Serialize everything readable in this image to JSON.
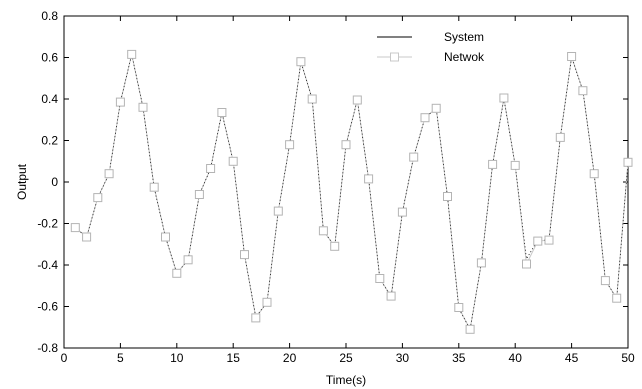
{
  "chart_data": {
    "type": "line",
    "xlabel": "Time(s)",
    "ylabel": "Output",
    "xlim": [
      0,
      50
    ],
    "ylim": [
      -0.8,
      0.8
    ],
    "xticks": [
      0,
      5,
      10,
      15,
      20,
      25,
      30,
      35,
      40,
      45,
      50
    ],
    "yticks": [
      -0.8,
      -0.6,
      -0.4,
      -0.2,
      0,
      0.2,
      0.4,
      0.6,
      0.8
    ],
    "ytick_labels": [
      "-0.8",
      "-0.6",
      "-0.4",
      "-0.2",
      "0",
      "0.2",
      "0.4",
      "0.6",
      "0.8"
    ],
    "grid": false,
    "legend": "top-center",
    "series": [
      {
        "name": "System",
        "color": "#000000",
        "style": "solid-thin",
        "x": [
          1,
          2,
          3,
          4,
          5,
          6,
          7,
          8,
          9,
          10,
          11,
          12,
          13,
          14,
          15,
          16,
          17,
          18,
          19,
          20,
          21,
          22,
          23,
          24,
          25,
          26,
          27,
          28,
          29,
          30,
          31,
          32,
          33,
          34,
          35,
          36,
          37,
          38,
          39,
          40,
          41,
          42,
          43,
          44,
          45,
          46,
          47,
          48,
          49,
          50
        ],
        "y": [
          -0.22,
          -0.265,
          -0.075,
          0.04,
          0.385,
          0.615,
          0.36,
          -0.03,
          -0.265,
          -0.44,
          -0.375,
          -0.06,
          0.065,
          0.335,
          0.1,
          -0.35,
          -0.65,
          -0.58,
          -0.14,
          0.18,
          0.58,
          0.4,
          -0.235,
          -0.31,
          0.18,
          0.395,
          0.015,
          -0.465,
          -0.555,
          -0.145,
          0.125,
          0.31,
          0.355,
          -0.07,
          -0.61,
          -0.71,
          -0.39,
          0.085,
          0.4,
          0.08,
          -0.37,
          -0.28,
          -0.28,
          0.215,
          0.6,
          0.44,
          0.04,
          -0.475,
          -0.56,
          0.095
        ]
      },
      {
        "name": "Netwok",
        "color": "#c8c8c8",
        "style": "line-square-markers",
        "x": [
          1,
          2,
          3,
          4,
          5,
          6,
          7,
          8,
          9,
          10,
          11,
          12,
          13,
          14,
          15,
          16,
          17,
          18,
          19,
          20,
          21,
          22,
          23,
          24,
          25,
          26,
          27,
          28,
          29,
          30,
          31,
          32,
          33,
          34,
          35,
          36,
          37,
          38,
          39,
          40,
          41,
          42,
          43,
          44,
          45,
          46,
          47,
          48,
          49,
          50
        ],
        "y": [
          -0.22,
          -0.265,
          -0.075,
          0.04,
          0.385,
          0.615,
          0.36,
          -0.025,
          -0.265,
          -0.44,
          -0.375,
          -0.06,
          0.065,
          0.335,
          0.1,
          -0.35,
          -0.655,
          -0.58,
          -0.14,
          0.18,
          0.58,
          0.4,
          -0.235,
          -0.31,
          0.18,
          0.395,
          0.015,
          -0.465,
          -0.55,
          -0.145,
          0.12,
          0.31,
          0.355,
          -0.07,
          -0.605,
          -0.71,
          -0.39,
          0.085,
          0.405,
          0.08,
          -0.395,
          -0.285,
          -0.28,
          0.215,
          0.605,
          0.44,
          0.04,
          -0.475,
          -0.56,
          0.095
        ]
      }
    ]
  }
}
